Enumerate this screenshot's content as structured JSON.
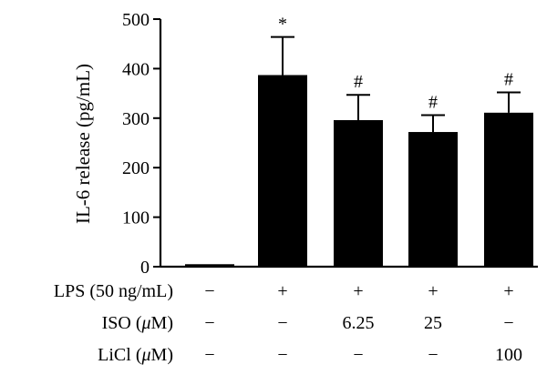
{
  "chart_data": {
    "type": "bar",
    "ylabel": "IL-6 release (pg/mL)",
    "ylim": [
      0,
      500
    ],
    "yticks": [
      0,
      100,
      200,
      300,
      400,
      500
    ],
    "groups": 5,
    "values": [
      5,
      387,
      296,
      272,
      311
    ],
    "errors": [
      0,
      77,
      51,
      34,
      41
    ],
    "significance": [
      "",
      "*",
      "#",
      "#",
      "#"
    ],
    "bar_color": "#000000",
    "conditions": [
      {
        "label": "LPS (50 ng/mL)",
        "values": [
          "−",
          "+",
          "+",
          "+",
          "+"
        ]
      },
      {
        "label_prefix": "ISO (",
        "unit_italic": "μ",
        "label_suffix": "M)",
        "values": [
          "−",
          "−",
          "6.25",
          "25",
          "−"
        ]
      },
      {
        "label_prefix": "LiCl (",
        "unit_italic": "μ",
        "label_suffix": "M)",
        "values": [
          "−",
          "−",
          "−",
          "−",
          "100"
        ]
      }
    ]
  }
}
